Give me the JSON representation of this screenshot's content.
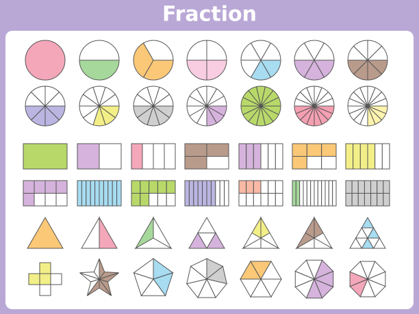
{
  "header": {
    "title": "Fraction"
  }
}
